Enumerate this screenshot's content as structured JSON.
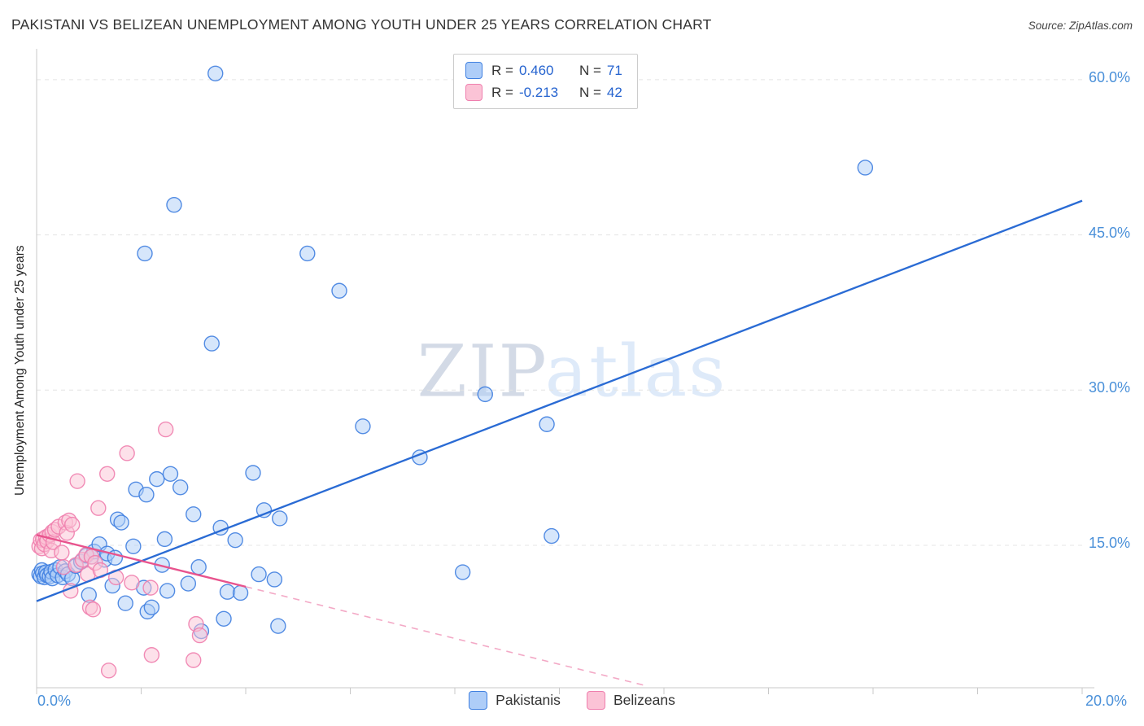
{
  "header": {
    "title": "PAKISTANI VS BELIZEAN UNEMPLOYMENT AMONG YOUTH UNDER 25 YEARS CORRELATION CHART",
    "source": "Source: ZipAtlas.com"
  },
  "watermark": {
    "part1": "ZIP",
    "part2": "atlas"
  },
  "legend": {
    "entries": [
      {
        "r_label": "R =",
        "r_value": "0.460",
        "n_label": "N =",
        "n_value": "71"
      },
      {
        "r_label": "R =",
        "r_value": "-0.213",
        "n_label": "N =",
        "n_value": "42"
      }
    ]
  },
  "bottom_legend": {
    "items": [
      {
        "label": "Pakistanis"
      },
      {
        "label": "Belizeans"
      }
    ]
  },
  "chart_data": {
    "type": "scatter",
    "title": "PAKISTANI VS BELIZEAN UNEMPLOYMENT AMONG YOUTH UNDER 25 YEARS CORRELATION CHART",
    "xlabel": "",
    "ylabel": "Unemployment Among Youth under 25 years",
    "xlim": [
      0,
      20
    ],
    "ylim": [
      0,
      63
    ],
    "grid": "horizontal-dashed",
    "legend_position": "top-center",
    "x_tick_labels": [
      "0.0%",
      "20.0%"
    ],
    "x_axis_tick_values": [
      0,
      2,
      4,
      6,
      8,
      10,
      12,
      14,
      16,
      18,
      20
    ],
    "y_tick_values": [
      15,
      30,
      45,
      60
    ],
    "y_tick_labels": [
      "15.0%",
      "30.0%",
      "45.0%",
      "60.0%"
    ],
    "colors": {
      "grid": "#e4e4e4",
      "axis": "#c9c9c9",
      "tick_label": "#4a90d9"
    },
    "series": [
      {
        "name": "Pakistanis",
        "r": 0.46,
        "n": 71,
        "color": "#4080e0",
        "fill": "#aecdf8",
        "points": [
          [
            0.05,
            12.2
          ],
          [
            0.08,
            12.0
          ],
          [
            0.1,
            12.6
          ],
          [
            0.12,
            12.3
          ],
          [
            0.15,
            11.9
          ],
          [
            0.18,
            12.4
          ],
          [
            0.2,
            12.1
          ],
          [
            0.25,
            12.0
          ],
          [
            0.28,
            12.45
          ],
          [
            0.3,
            11.8
          ],
          [
            0.36,
            12.6
          ],
          [
            0.4,
            12.1
          ],
          [
            0.45,
            12.9
          ],
          [
            0.5,
            11.9
          ],
          [
            0.55,
            12.5
          ],
          [
            0.6,
            12.2
          ],
          [
            0.68,
            11.8
          ],
          [
            0.75,
            13.0
          ],
          [
            0.85,
            13.4
          ],
          [
            0.95,
            14.0
          ],
          [
            1.0,
            10.2
          ],
          [
            1.05,
            13.9
          ],
          [
            1.1,
            14.4
          ],
          [
            1.2,
            15.1
          ],
          [
            1.3,
            13.6
          ],
          [
            1.35,
            14.2
          ],
          [
            1.45,
            11.1
          ],
          [
            1.5,
            13.8
          ],
          [
            1.55,
            17.5
          ],
          [
            1.62,
            17.2
          ],
          [
            1.7,
            9.4
          ],
          [
            1.85,
            14.9
          ],
          [
            1.9,
            20.4
          ],
          [
            2.05,
            10.9
          ],
          [
            2.07,
            43.2
          ],
          [
            2.1,
            19.9
          ],
          [
            2.12,
            8.6
          ],
          [
            2.2,
            9.0
          ],
          [
            2.3,
            21.4
          ],
          [
            2.4,
            13.1
          ],
          [
            2.45,
            15.6
          ],
          [
            2.5,
            10.6
          ],
          [
            2.56,
            21.9
          ],
          [
            2.63,
            47.9
          ],
          [
            2.75,
            20.6
          ],
          [
            2.9,
            11.3
          ],
          [
            3.0,
            18.0
          ],
          [
            3.1,
            12.9
          ],
          [
            3.15,
            6.7
          ],
          [
            3.35,
            34.5
          ],
          [
            3.42,
            60.6
          ],
          [
            3.52,
            16.7
          ],
          [
            3.58,
            7.9
          ],
          [
            3.65,
            10.5
          ],
          [
            3.8,
            15.5
          ],
          [
            3.9,
            10.4
          ],
          [
            4.14,
            22.0
          ],
          [
            4.25,
            12.2
          ],
          [
            4.35,
            18.4
          ],
          [
            4.55,
            11.7
          ],
          [
            4.62,
            7.2
          ],
          [
            4.65,
            17.6
          ],
          [
            5.18,
            43.2
          ],
          [
            5.79,
            39.6
          ],
          [
            6.24,
            26.5
          ],
          [
            7.33,
            23.5
          ],
          [
            8.15,
            12.4
          ],
          [
            8.58,
            29.6
          ],
          [
            9.76,
            26.7
          ],
          [
            9.85,
            15.9
          ],
          [
            15.85,
            51.5
          ]
        ]
      },
      {
        "name": "Belizeans",
        "r": -0.213,
        "n": 42,
        "color": "#ef7fae",
        "fill": "#fbc3d6",
        "points": [
          [
            0.05,
            14.9
          ],
          [
            0.08,
            15.5
          ],
          [
            0.1,
            14.7
          ],
          [
            0.12,
            15.6
          ],
          [
            0.15,
            15.1
          ],
          [
            0.18,
            15.8
          ],
          [
            0.2,
            15.4
          ],
          [
            0.25,
            16.0
          ],
          [
            0.28,
            14.5
          ],
          [
            0.3,
            16.3
          ],
          [
            0.32,
            15.3
          ],
          [
            0.35,
            16.5
          ],
          [
            0.42,
            16.8
          ],
          [
            0.48,
            14.3
          ],
          [
            0.52,
            12.9
          ],
          [
            0.55,
            17.2
          ],
          [
            0.58,
            16.2
          ],
          [
            0.62,
            17.4
          ],
          [
            0.65,
            10.6
          ],
          [
            0.68,
            17.0
          ],
          [
            0.75,
            13.1
          ],
          [
            0.78,
            21.2
          ],
          [
            0.88,
            13.6
          ],
          [
            0.95,
            14.1
          ],
          [
            0.98,
            12.2
          ],
          [
            1.02,
            9.0
          ],
          [
            1.05,
            13.9
          ],
          [
            1.08,
            8.8
          ],
          [
            1.12,
            13.3
          ],
          [
            1.18,
            18.6
          ],
          [
            1.22,
            12.6
          ],
          [
            1.35,
            21.9
          ],
          [
            1.38,
            2.9
          ],
          [
            1.52,
            11.9
          ],
          [
            1.73,
            23.9
          ],
          [
            1.82,
            11.4
          ],
          [
            2.18,
            10.9
          ],
          [
            2.2,
            4.4
          ],
          [
            2.47,
            26.2
          ],
          [
            3.0,
            3.9
          ],
          [
            3.05,
            7.4
          ],
          [
            3.12,
            6.3
          ]
        ]
      }
    ],
    "trend_lines": [
      {
        "series": "Pakistanis",
        "style": "solid",
        "color": "#2a6bd4",
        "x1": 0,
        "y1": 9.6,
        "x2": 20,
        "y2": 48.3
      },
      {
        "series": "Belizeans",
        "style": "solid",
        "color": "#e8538d",
        "x1": 0,
        "y1": 16.0,
        "x2": 4.0,
        "y2": 11.0
      },
      {
        "series": "Belizeans",
        "style": "dashed",
        "color": "#f3a9c6",
        "x1": 4.0,
        "y1": 11.0,
        "x2": 11.6,
        "y2": 1.5
      }
    ]
  }
}
